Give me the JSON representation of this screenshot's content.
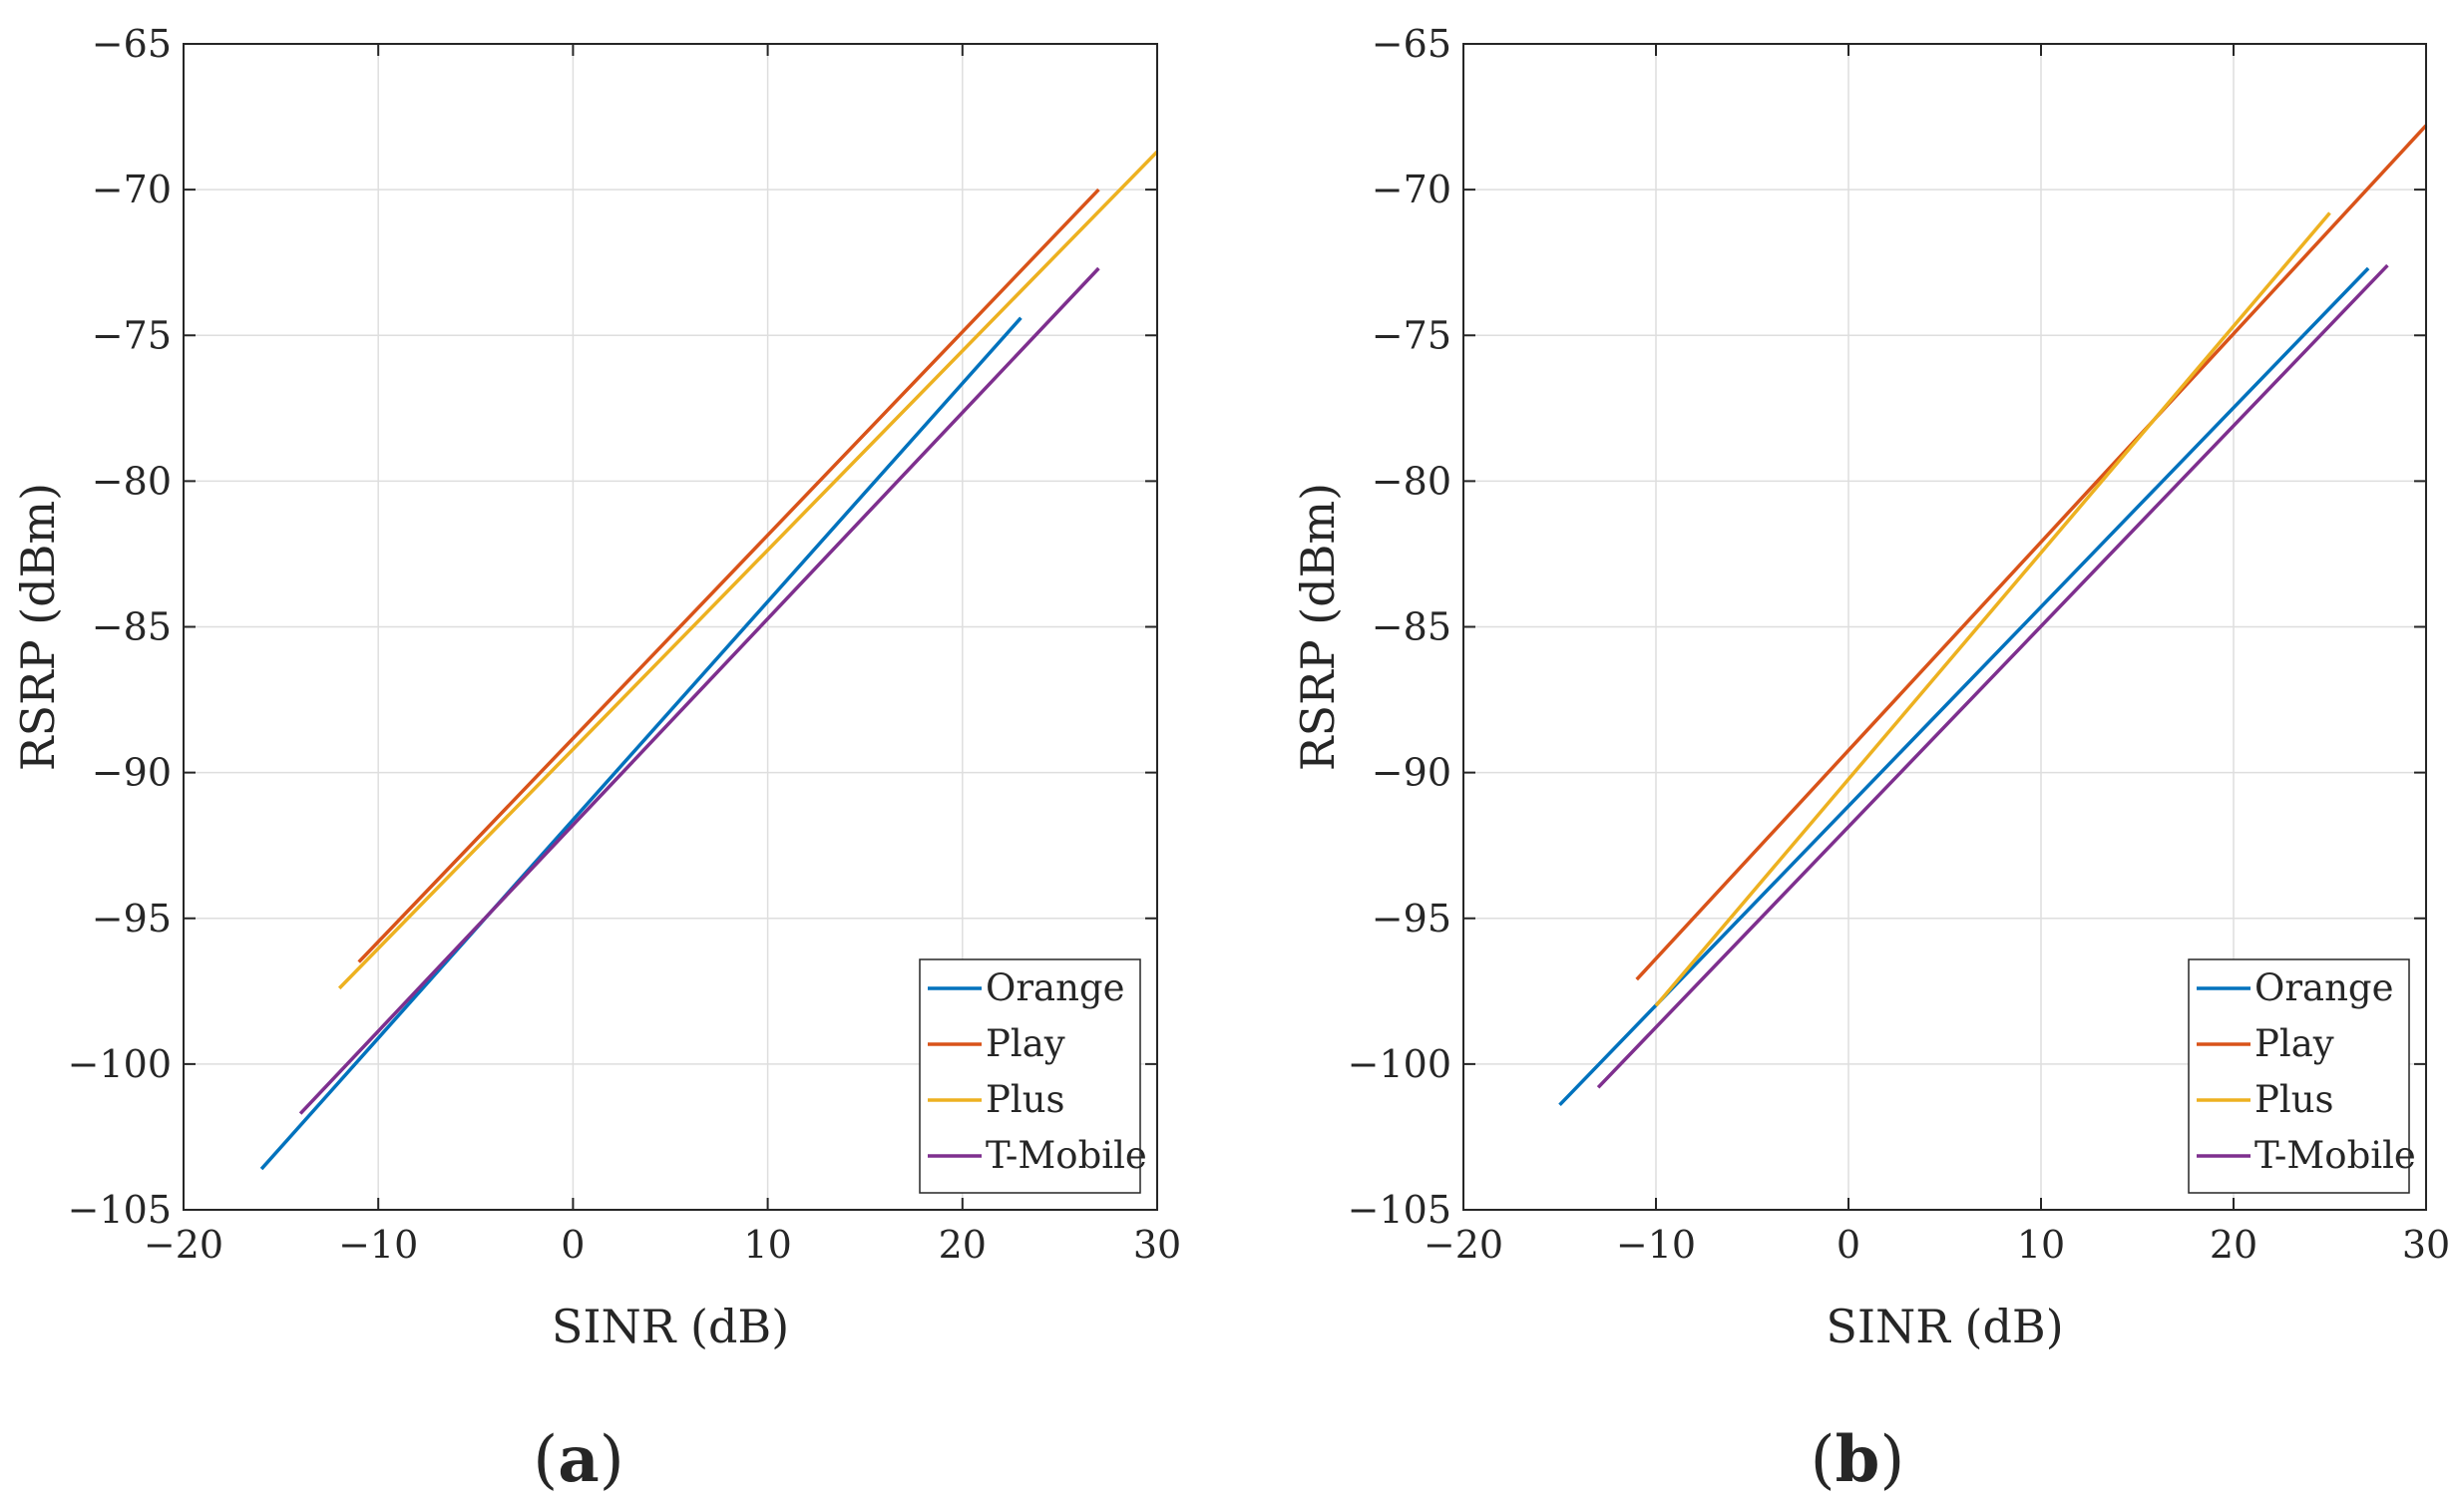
{
  "chart_data": [
    {
      "type": "line",
      "panel_label": {
        "open": "(",
        "letter": "a",
        "close": ")"
      },
      "xlabel": "SINR  (dB)",
      "ylabel": "RSRP  (dBm)",
      "xlim": [
        -20,
        30
      ],
      "ylim": [
        -105,
        -65
      ],
      "xticks": [
        -20,
        -10,
        0,
        10,
        20,
        30
      ],
      "yticks": [
        -105,
        -100,
        -95,
        -90,
        -85,
        -80,
        -75,
        -70,
        -65
      ],
      "xtick_labels": [
        "−20",
        "−10",
        "0",
        "10",
        "20",
        "30"
      ],
      "ytick_labels": [
        "−105",
        "−100",
        "−95",
        "−90",
        "−85",
        "−80",
        "−75",
        "−70",
        "−65"
      ],
      "grid": true,
      "legend_position": "bottom-right",
      "series": [
        {
          "name": "Orange",
          "color": "#0072BD",
          "x": [
            -16,
            23
          ],
          "y": [
            -103.6,
            -74.4
          ]
        },
        {
          "name": "Play",
          "color": "#D95319",
          "x": [
            -11,
            27
          ],
          "y": [
            -96.5,
            -70.0
          ]
        },
        {
          "name": "Plus",
          "color": "#EDB120",
          "x": [
            -12,
            30
          ],
          "y": [
            -97.4,
            -68.7
          ]
        },
        {
          "name": "T-Mobile",
          "color": "#7E2F8E",
          "x": [
            -14,
            27
          ],
          "y": [
            -101.7,
            -72.7
          ]
        }
      ]
    },
    {
      "type": "line",
      "panel_label": {
        "open": "(",
        "letter": "b",
        "close": ")"
      },
      "xlabel": "SINR  (dB)",
      "ylabel": "RSRP  (dBm)",
      "xlim": [
        -20,
        30
      ],
      "ylim": [
        -105,
        -65
      ],
      "xticks": [
        -20,
        -10,
        0,
        10,
        20,
        30
      ],
      "yticks": [
        -105,
        -100,
        -95,
        -90,
        -85,
        -80,
        -75,
        -70,
        -65
      ],
      "xtick_labels": [
        "−20",
        "−10",
        "0",
        "10",
        "20",
        "30"
      ],
      "ytick_labels": [
        "−105",
        "−100",
        "−95",
        "−90",
        "−85",
        "−80",
        "−75",
        "−70",
        "−65"
      ],
      "grid": true,
      "legend_position": "bottom-right",
      "series": [
        {
          "name": "Orange",
          "color": "#0072BD",
          "x": [
            -15,
            27
          ],
          "y": [
            -101.4,
            -72.7
          ]
        },
        {
          "name": "Play",
          "color": "#D95319",
          "x": [
            -11,
            30
          ],
          "y": [
            -97.1,
            -67.8
          ]
        },
        {
          "name": "Plus",
          "color": "#EDB120",
          "x": [
            -10,
            25
          ],
          "y": [
            -98.0,
            -70.8
          ]
        },
        {
          "name": "T-Mobile",
          "color": "#7E2F8E",
          "x": [
            -13,
            28
          ],
          "y": [
            -100.8,
            -72.6
          ]
        }
      ]
    }
  ]
}
